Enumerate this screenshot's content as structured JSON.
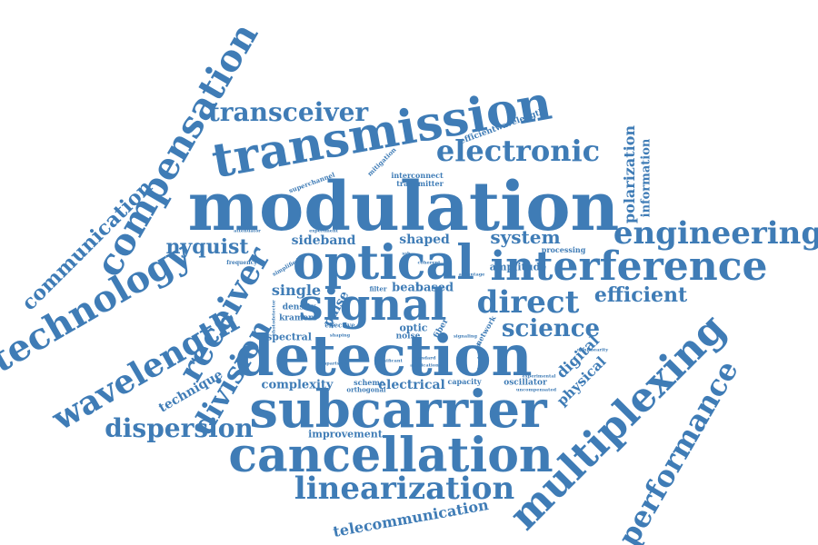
{
  "theme": {
    "word_color": "#3f7cb6"
  },
  "words": {
    "modulation": "modulation",
    "transmission": "transmission",
    "detection": "detection",
    "subcarrier": "subcarrier",
    "cancellation": "cancellation",
    "optical": "optical",
    "interference": "interference",
    "signal": "signal",
    "multiplexing": "multiplexing",
    "compensation": "compensation",
    "technology": "technology",
    "wavelength": "wavelength",
    "receiver": "receiver",
    "division": "division",
    "engineering": "engineering",
    "electronic": "electronic",
    "linearization": "linearization",
    "performance": "performance",
    "transceiver": "transceiver",
    "direct": "direct",
    "science": "science",
    "dispersion": "dispersion",
    "communication": "communication",
    "efficient": "efficient",
    "nyquist": "nyquist",
    "system": "system",
    "telecommunication": "telecommunication",
    "polarization": "polarization",
    "information": "information",
    "digital": "digital",
    "physical": "physical",
    "single": "single",
    "technique": "technique",
    "sideband": "sideband",
    "shaped": "shaped",
    "electrical": "electrical",
    "complexity": "complexity",
    "improvement": "improvement",
    "pulse": "pulse",
    "beat": "beat",
    "based": "based",
    "efficientwavelength": "efficientwavelength",
    "amplitude": "amplitude",
    "processing": "processing",
    "spectral": "spectral",
    "density": "density",
    "kramers": "kramers",
    "noise": "noise",
    "optic": "optic",
    "fiber": "fiber",
    "network": "network",
    "oscillator": "oscillator",
    "scheme": "scheme",
    "capacity": "capacity",
    "orthogonal": "orthogonal",
    "interconnect": "interconnect",
    "transmitter": "transmitter",
    "superchannel": "superchannel",
    "mitigation": "mitigation",
    "simplified": "simplified",
    "frequency": "frequency",
    "attenuator": "attenuator",
    "effective": "effective",
    "filter": "filter",
    "experiment": "experiment",
    "comparison": "comparison",
    "distortion": "distortion",
    "standard": "standard",
    "application": "application",
    "significant": "significant",
    "shaping": "shaping",
    "signaling": "signaling",
    "uncompensated": "uncompensated",
    "nonlinearity": "nonlinearity",
    "ssb": "ssb",
    "coherent": "coherent",
    "bandwidth": "bandwidth",
    "photodetector": "photodetector",
    "advantage": "advantage",
    "experimental": "experimental"
  }
}
